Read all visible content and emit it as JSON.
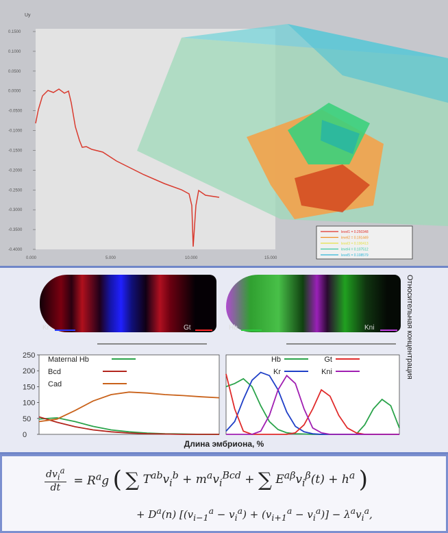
{
  "top_chart": {
    "ylabel": "Uy",
    "y_ticks": [
      "0.1500",
      "0.1000",
      "0.0500",
      "0.0000",
      "-0.0500",
      "-0.1000",
      "-0.1500",
      "-0.2000",
      "-0.2500",
      "-0.3000",
      "-0.3500",
      "-0.4000"
    ],
    "x_ticks": [
      "0.000",
      "5.000",
      "10.000",
      "15.000"
    ],
    "legend": [
      "level1 = 0.250348",
      "level2 = 0.191449",
      "level3 = 0.190413",
      "level4 = 0.107512",
      "level5 = 0.108579"
    ],
    "legend_colors": [
      "#e0302a",
      "#f08c1f",
      "#e5e047",
      "#38c7a3",
      "#2fb7d8"
    ],
    "line_color": "#d93a2e"
  },
  "images": {
    "left_labels": {
      "a": "Kr",
      "b": "Gt"
    },
    "right_labels": {
      "a": "Hb",
      "b": "Kni"
    }
  },
  "vertical_label": "Относительная концентрация",
  "x_axis_label": "Длина эмбриона, %",
  "chart_data": [
    {
      "type": "line",
      "y_ticks": [
        "250",
        "200",
        "150",
        "100",
        "50",
        "0"
      ],
      "ylim": [
        0,
        250
      ],
      "x": [
        0,
        10,
        20,
        30,
        40,
        50,
        60,
        70,
        80,
        90,
        100
      ],
      "series": [
        {
          "name": "Maternal Hb",
          "color": "#2aa34a",
          "values": [
            48,
            52,
            40,
            25,
            14,
            8,
            4,
            2,
            1,
            0,
            0
          ]
        },
        {
          "name": "Bcd",
          "color": "#b3261e",
          "values": [
            55,
            38,
            24,
            14,
            8,
            4,
            2,
            1,
            0,
            0,
            0
          ]
        },
        {
          "name": "Cad",
          "color": "#c9621a",
          "values": [
            40,
            48,
            75,
            105,
            125,
            133,
            130,
            125,
            122,
            118,
            115
          ]
        }
      ]
    },
    {
      "type": "line",
      "ylim": [
        0,
        250
      ],
      "x": [
        0,
        5,
        10,
        15,
        20,
        25,
        30,
        35,
        40,
        45,
        50,
        55,
        60,
        65,
        70,
        75,
        80,
        85,
        90,
        95,
        100
      ],
      "series": [
        {
          "name": "Hb",
          "color": "#2aa34a",
          "values": [
            150,
            160,
            175,
            150,
            90,
            40,
            15,
            5,
            2,
            1,
            0,
            0,
            0,
            0,
            0,
            0,
            30,
            80,
            110,
            90,
            20
          ]
        },
        {
          "name": "Kr",
          "color": "#1f3fc7",
          "values": [
            10,
            40,
            110,
            170,
            195,
            185,
            140,
            70,
            25,
            8,
            2,
            0,
            0,
            0,
            0,
            0,
            0,
            0,
            0,
            0,
            0
          ]
        },
        {
          "name": "Gt",
          "color": "#e02a2a",
          "values": [
            190,
            80,
            10,
            0,
            0,
            0,
            0,
            0,
            5,
            30,
            80,
            140,
            120,
            60,
            20,
            5,
            0,
            0,
            0,
            0,
            0
          ]
        },
        {
          "name": "Kni",
          "color": "#a01fb2",
          "values": [
            0,
            0,
            0,
            0,
            10,
            60,
            140,
            185,
            160,
            80,
            20,
            5,
            0,
            0,
            0,
            0,
            0,
            0,
            0,
            0,
            0
          ]
        }
      ]
    }
  ]
}
